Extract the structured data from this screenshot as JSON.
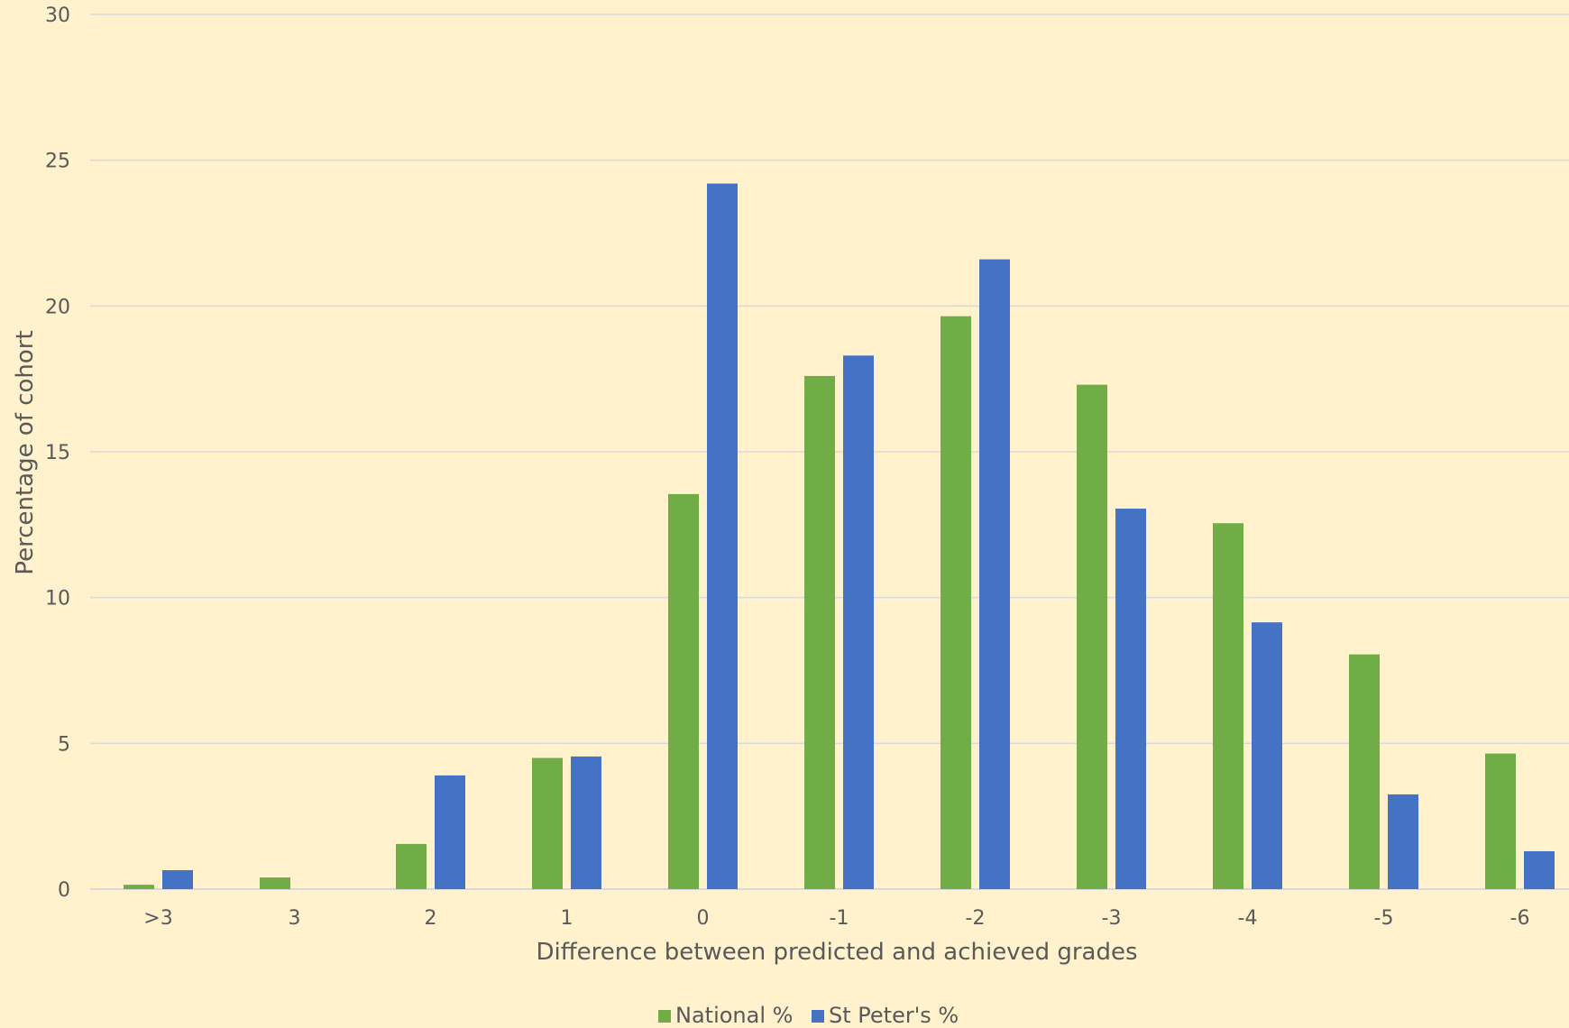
{
  "chart_data": {
    "type": "bar",
    "title": "",
    "xlabel": "Difference between predicted and achieved grades",
    "ylabel": "Percentage of cohort",
    "ylim": [
      0,
      30
    ],
    "yticks": [
      "0",
      "5",
      "10",
      "15",
      "20",
      "25",
      "30"
    ],
    "categories": [
      ">3",
      "3",
      "2",
      "1",
      "0",
      "-1",
      "-2",
      "-3",
      "-4",
      "-5",
      "-6"
    ],
    "series": [
      {
        "name": "National %",
        "color": "#70AD47",
        "values": [
          0.15,
          0.4,
          1.55,
          4.5,
          13.55,
          17.6,
          19.65,
          17.3,
          12.55,
          8.05,
          4.65
        ]
      },
      {
        "name": "St Peter's %",
        "color": "#4472C4",
        "values": [
          0.65,
          0,
          3.9,
          4.55,
          24.2,
          18.3,
          21.6,
          13.05,
          9.15,
          3.25,
          1.3
        ]
      }
    ],
    "grid": true,
    "legend_position": "bottom"
  }
}
